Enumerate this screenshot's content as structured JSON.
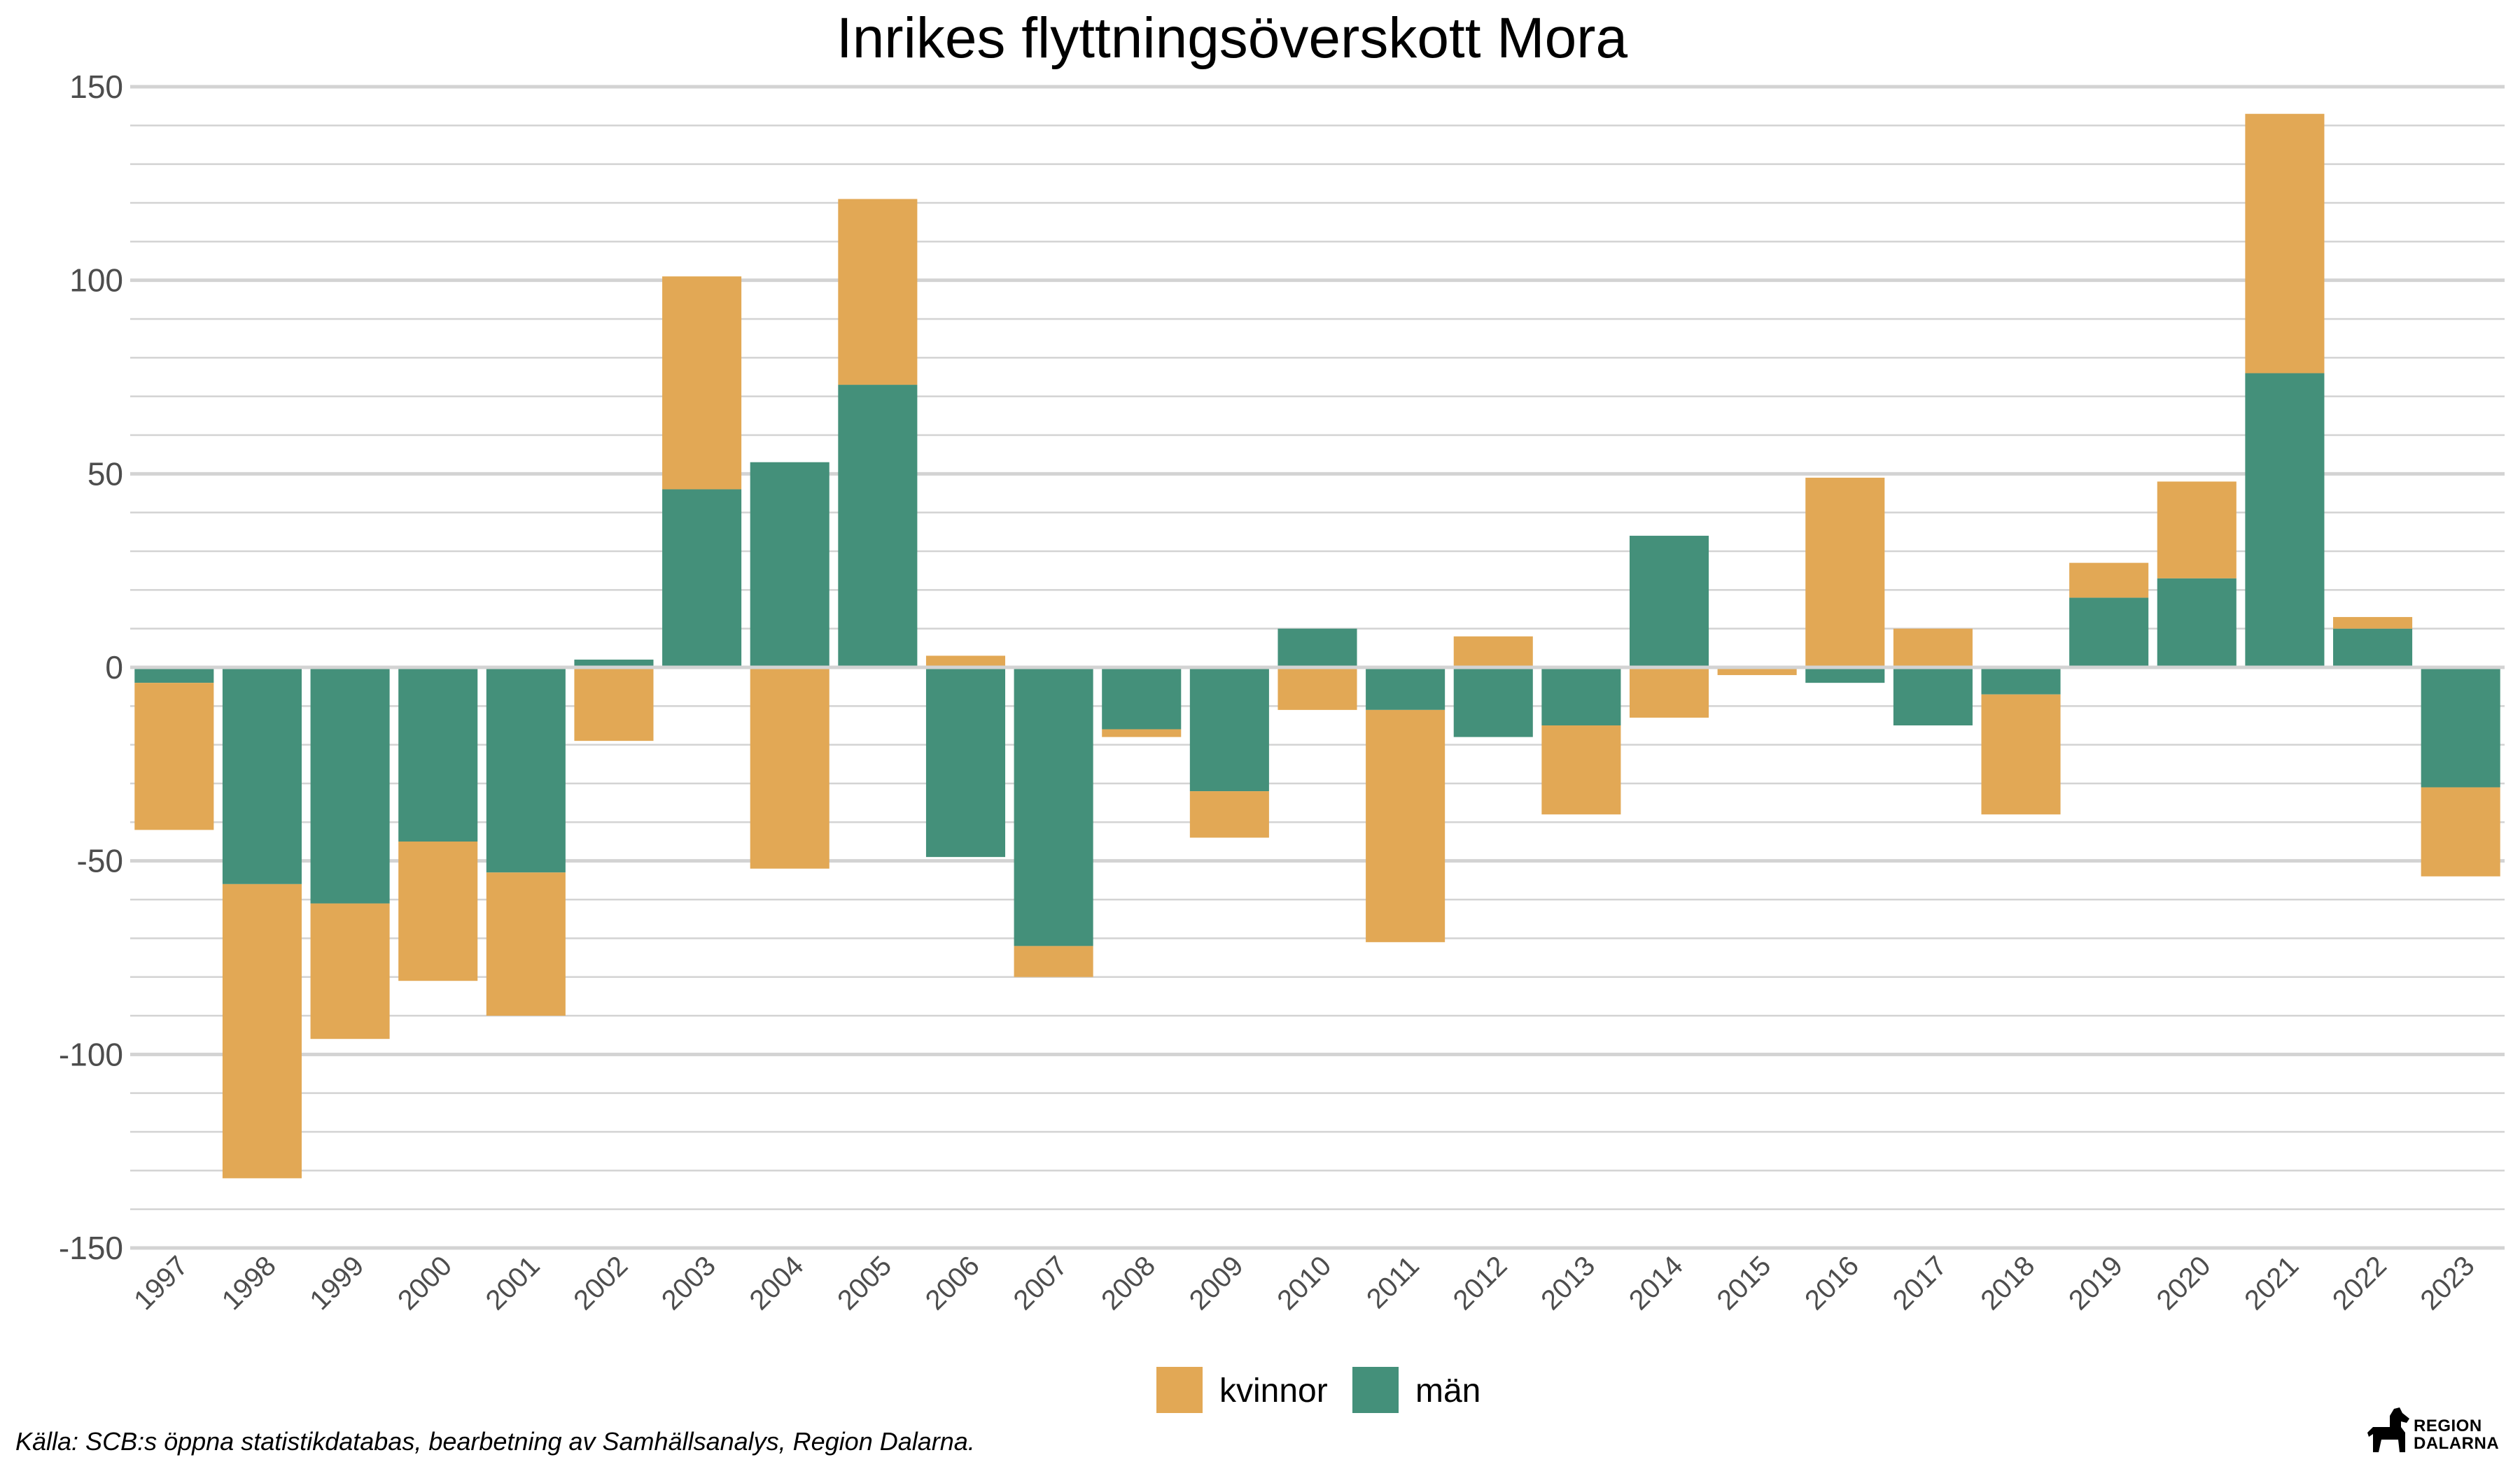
{
  "chart_data": {
    "type": "bar",
    "stacked": true,
    "title": "Inrikes flyttningsöverskott Mora",
    "xlabel": "",
    "ylabel": "",
    "ylim": [
      -150,
      150
    ],
    "yticks": [
      150,
      100,
      50,
      0,
      -50,
      -100,
      -150
    ],
    "categories": [
      "1997",
      "1998",
      "1999",
      "2000",
      "2001",
      "2002",
      "2003",
      "2004",
      "2005",
      "2006",
      "2007",
      "2008",
      "2009",
      "2010",
      "2011",
      "2012",
      "2013",
      "2014",
      "2015",
      "2016",
      "2017",
      "2018",
      "2019",
      "2020",
      "2021",
      "2022",
      "2023"
    ],
    "series": [
      {
        "name": "män",
        "color": "#44907a",
        "values": [
          -4,
          -56,
          -61,
          -45,
          -53,
          2,
          46,
          53,
          73,
          -49,
          -72,
          -16,
          -32,
          10,
          -11,
          -18,
          -15,
          34,
          0,
          -4,
          -15,
          -7,
          18,
          23,
          76,
          10,
          -31
        ]
      },
      {
        "name": "kvinnor",
        "color": "#e2a855",
        "values": [
          -38,
          -76,
          -35,
          -36,
          -37,
          -19,
          55,
          -52,
          48,
          3,
          -8,
          -2,
          -12,
          -11,
          -60,
          8,
          -23,
          -13,
          -2,
          49,
          10,
          -31,
          9,
          25,
          67,
          3,
          -23
        ]
      }
    ],
    "legend": {
      "position": "bottom",
      "order": [
        "kvinnor",
        "män"
      ]
    },
    "grid": true
  },
  "caption": "Källa: SCB:s öppna statistikdatabas, bearbetning av Samhällsanalys, Region Dalarna.",
  "logo": {
    "line1": "REGION",
    "line2": "DALARNA"
  }
}
